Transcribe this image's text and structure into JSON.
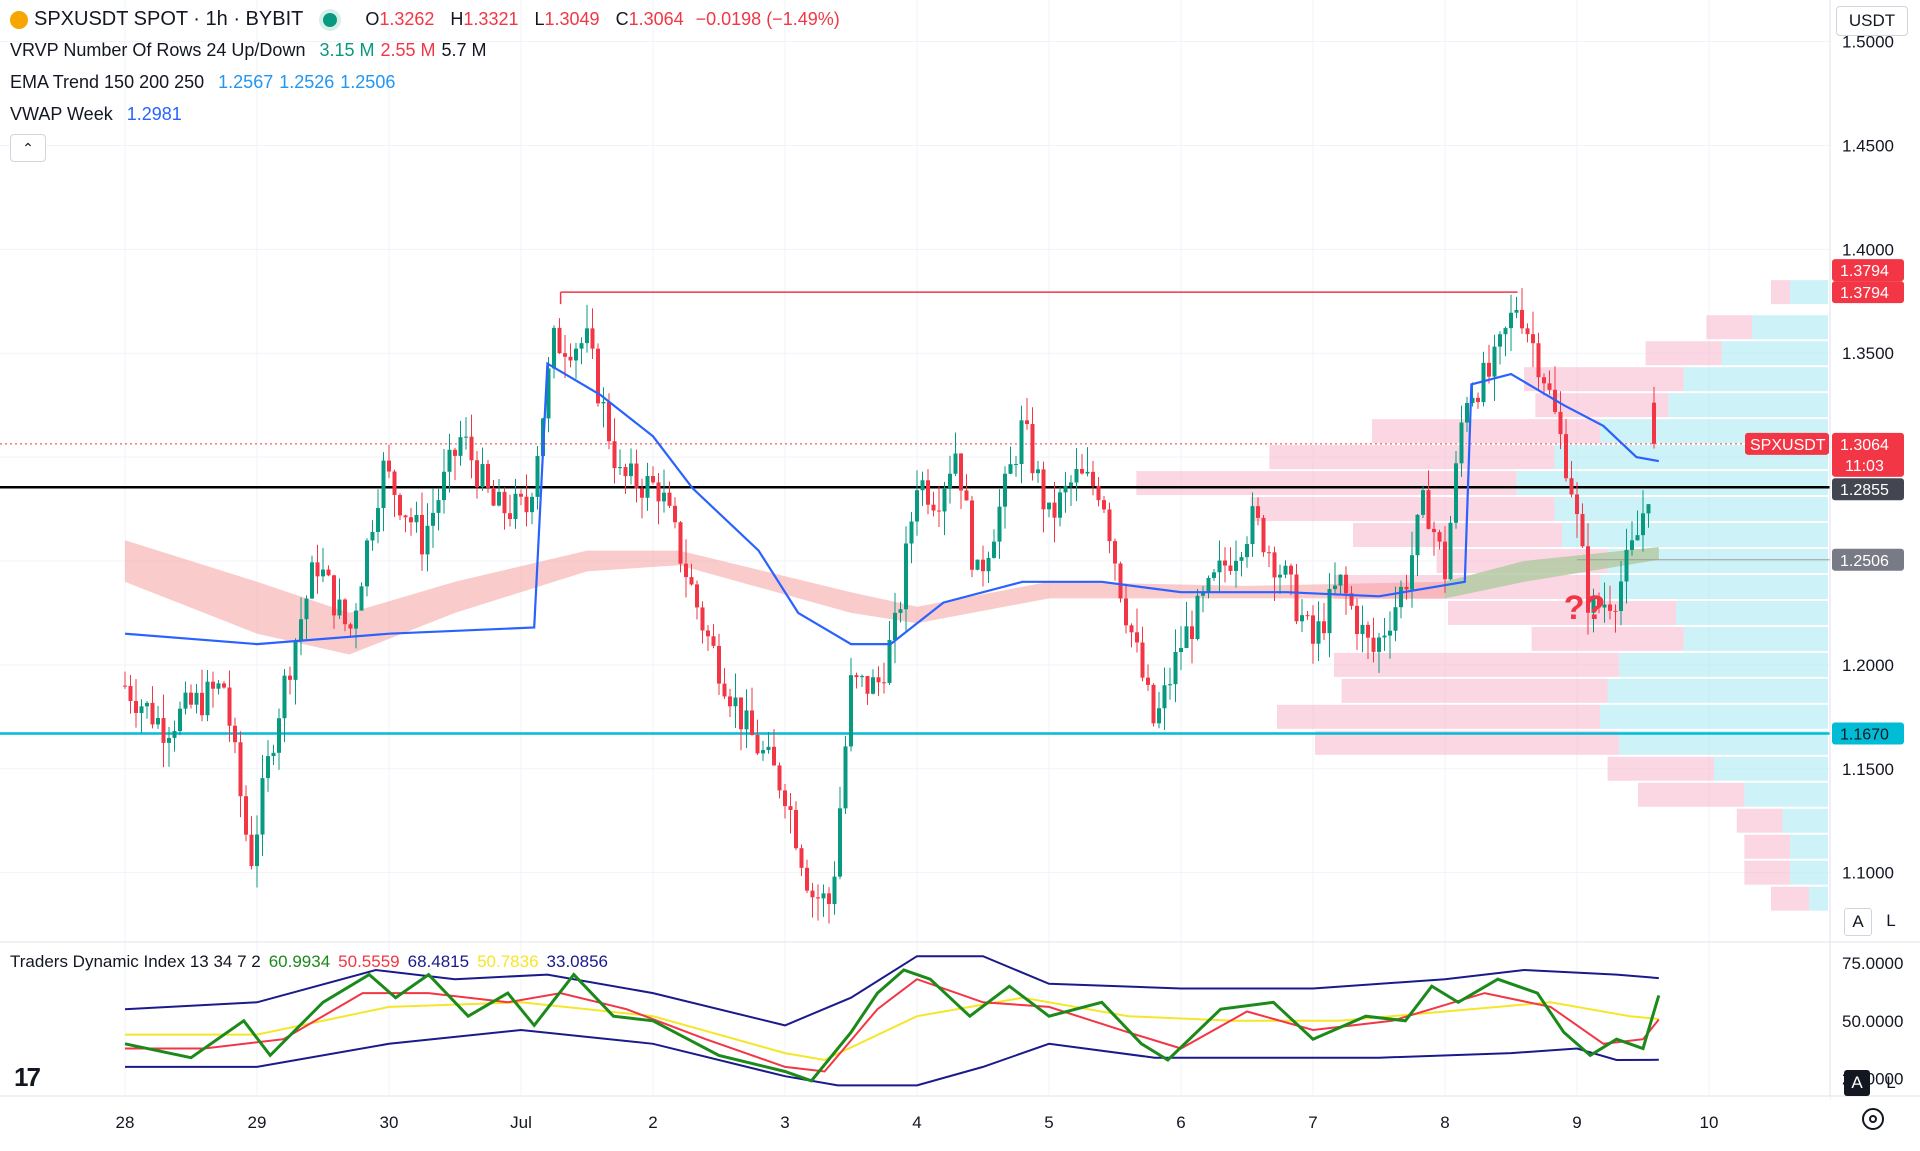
{
  "header": {
    "symbol": "SPXUSDT SPOT · 1h · BYBIT",
    "o_label": "O",
    "o_value": "1.3262",
    "h_label": "H",
    "h_value": "1.3321",
    "l_label": "L",
    "l_value": "1.3049",
    "c_label": "C",
    "c_value": "1.3064",
    "change": "−0.0198 (−1.49%)"
  },
  "indicators": {
    "vrvp_label": "VRVP Number Of Rows 24 Up/Down",
    "vrvp_up": "3.15 M",
    "vrvp_down": "2.55 M",
    "vrvp_total": "5.7 M",
    "ema_label": "EMA Trend 150 200 250",
    "ema_150": "1.2567",
    "ema_200": "1.2526",
    "ema_250": "1.2506",
    "vwap_label": "VWAP Week",
    "vwap_value": "1.2981"
  },
  "tdi": {
    "label": "Traders Dynamic Index 13 34 7 2",
    "v1": "60.9934",
    "v2": "50.5559",
    "v3": "68.4815",
    "v4": "50.7836",
    "v5": "33.0856",
    "axis": [
      "75.0000",
      "50.0000",
      "25.0000"
    ]
  },
  "currency": "USDT",
  "buttons": {
    "collapse": "⌃",
    "auto": "A",
    "log": "L"
  },
  "annotation": "??",
  "price_tags": {
    "high1": "1.3794",
    "high2": "1.3794",
    "symbol": "SPXUSDT",
    "last": "1.3064",
    "countdown": "11:03",
    "resistance": "1.2855",
    "ema": "1.2506",
    "support": "1.1670"
  },
  "colors": {
    "up": "#089981",
    "down": "#f23645",
    "vwap": "#2962ff",
    "resistance": "#000000",
    "support": "#00bcd4",
    "range_line": "#f23645",
    "tdi_green": "#1b8a1b",
    "tdi_red": "#f23645",
    "tdi_yellow": "#f5e62a",
    "tdi_bands": "#1a1a8c"
  },
  "chart_data": {
    "type": "candlestick",
    "timeframe": "1h",
    "y_axis": {
      "ylim": [
        1.07,
        1.52
      ],
      "ticks": [
        "1.5000",
        "1.4500",
        "1.4000",
        "1.3500",
        "1.3000",
        "1.2500",
        "1.2000",
        "1.1500",
        "1.1000"
      ]
    },
    "x_axis": {
      "ticks": [
        "28",
        "29",
        "30",
        "Jul",
        "2",
        "3",
        "4",
        "5",
        "6",
        "7",
        "8",
        "9",
        "10"
      ]
    },
    "ohlc_last": {
      "open": 1.3262,
      "high": 1.3321,
      "low": 1.3049,
      "close": 1.3064
    },
    "close_path": [
      {
        "x": 0.0,
        "y": 1.19
      },
      {
        "x": 0.3,
        "y": 1.17
      },
      {
        "x": 0.5,
        "y": 1.18
      },
      {
        "x": 0.75,
        "y": 1.19
      },
      {
        "x": 0.95,
        "y": 1.105
      },
      {
        "x": 1.15,
        "y": 1.175
      },
      {
        "x": 1.3,
        "y": 1.215
      },
      {
        "x": 1.45,
        "y": 1.25
      },
      {
        "x": 1.7,
        "y": 1.215
      },
      {
        "x": 1.95,
        "y": 1.295
      },
      {
        "x": 2.25,
        "y": 1.26
      },
      {
        "x": 2.55,
        "y": 1.31
      },
      {
        "x": 2.8,
        "y": 1.275
      },
      {
        "x": 3.05,
        "y": 1.275
      },
      {
        "x": 3.25,
        "y": 1.355
      },
      {
        "x": 3.5,
        "y": 1.355
      },
      {
        "x": 3.75,
        "y": 1.29
      },
      {
        "x": 4.05,
        "y": 1.285
      },
      {
        "x": 4.4,
        "y": 1.215
      },
      {
        "x": 4.7,
        "y": 1.17
      },
      {
        "x": 5.0,
        "y": 1.14
      },
      {
        "x": 5.2,
        "y": 1.09
      },
      {
        "x": 5.35,
        "y": 1.085
      },
      {
        "x": 5.5,
        "y": 1.19
      },
      {
        "x": 5.7,
        "y": 1.19
      },
      {
        "x": 5.85,
        "y": 1.22
      },
      {
        "x": 6.0,
        "y": 1.29
      },
      {
        "x": 6.15,
        "y": 1.28
      },
      {
        "x": 6.3,
        "y": 1.305
      },
      {
        "x": 6.45,
        "y": 1.24
      },
      {
        "x": 6.65,
        "y": 1.28
      },
      {
        "x": 6.8,
        "y": 1.315
      },
      {
        "x": 7.0,
        "y": 1.27
      },
      {
        "x": 7.2,
        "y": 1.29
      },
      {
        "x": 7.4,
        "y": 1.285
      },
      {
        "x": 7.55,
        "y": 1.235
      },
      {
        "x": 7.8,
        "y": 1.17
      },
      {
        "x": 8.0,
        "y": 1.21
      },
      {
        "x": 8.3,
        "y": 1.245
      },
      {
        "x": 8.55,
        "y": 1.27
      },
      {
        "x": 8.8,
        "y": 1.24
      },
      {
        "x": 9.0,
        "y": 1.21
      },
      {
        "x": 9.2,
        "y": 1.24
      },
      {
        "x": 9.45,
        "y": 1.205
      },
      {
        "x": 9.7,
        "y": 1.24
      },
      {
        "x": 9.85,
        "y": 1.28
      },
      {
        "x": 10.0,
        "y": 1.245
      },
      {
        "x": 10.15,
        "y": 1.33
      },
      {
        "x": 10.35,
        "y": 1.34
      },
      {
        "x": 10.55,
        "y": 1.375
      },
      {
        "x": 10.75,
        "y": 1.34
      },
      {
        "x": 10.95,
        "y": 1.29
      },
      {
        "x": 11.1,
        "y": 1.225
      },
      {
        "x": 11.3,
        "y": 1.235
      },
      {
        "x": 11.45,
        "y": 1.26
      },
      {
        "x": 11.62,
        "y": 1.3064
      }
    ],
    "vwap": [
      {
        "x": 0.0,
        "y": 1.215
      },
      {
        "x": 1.0,
        "y": 1.21
      },
      {
        "x": 2.0,
        "y": 1.215
      },
      {
        "x": 3.1,
        "y": 1.218
      },
      {
        "x": 3.2,
        "y": 1.345
      },
      {
        "x": 3.6,
        "y": 1.33
      },
      {
        "x": 4.0,
        "y": 1.31
      },
      {
        "x": 4.3,
        "y": 1.285
      },
      {
        "x": 4.8,
        "y": 1.255
      },
      {
        "x": 5.1,
        "y": 1.225
      },
      {
        "x": 5.5,
        "y": 1.21
      },
      {
        "x": 5.8,
        "y": 1.21
      },
      {
        "x": 6.2,
        "y": 1.23
      },
      {
        "x": 6.8,
        "y": 1.24
      },
      {
        "x": 7.4,
        "y": 1.24
      },
      {
        "x": 8.0,
        "y": 1.235
      },
      {
        "x": 8.8,
        "y": 1.235
      },
      {
        "x": 9.5,
        "y": 1.233
      },
      {
        "x": 10.15,
        "y": 1.24
      },
      {
        "x": 10.2,
        "y": 1.335
      },
      {
        "x": 10.5,
        "y": 1.34
      },
      {
        "x": 10.9,
        "y": 1.325
      },
      {
        "x": 11.2,
        "y": 1.315
      },
      {
        "x": 11.45,
        "y": 1.3
      },
      {
        "x": 11.62,
        "y": 1.2981
      }
    ],
    "ema_band": {
      "upper": [
        {
          "x": 0.0,
          "y": 1.26
        },
        {
          "x": 1.0,
          "y": 1.24
        },
        {
          "x": 1.7,
          "y": 1.225
        },
        {
          "x": 2.5,
          "y": 1.24
        },
        {
          "x": 3.5,
          "y": 1.255
        },
        {
          "x": 4.2,
          "y": 1.255
        },
        {
          "x": 5.5,
          "y": 1.235
        },
        {
          "x": 6.0,
          "y": 1.228
        },
        {
          "x": 7.0,
          "y": 1.24
        },
        {
          "x": 8.5,
          "y": 1.238
        },
        {
          "x": 10.0,
          "y": 1.24
        },
        {
          "x": 10.6,
          "y": 1.25
        },
        {
          "x": 11.62,
          "y": 1.2567
        }
      ],
      "lower": [
        {
          "x": 0.0,
          "y": 1.24
        },
        {
          "x": 1.0,
          "y": 1.215
        },
        {
          "x": 1.7,
          "y": 1.205
        },
        {
          "x": 2.5,
          "y": 1.225
        },
        {
          "x": 3.5,
          "y": 1.245
        },
        {
          "x": 4.2,
          "y": 1.248
        },
        {
          "x": 5.5,
          "y": 1.225
        },
        {
          "x": 6.0,
          "y": 1.22
        },
        {
          "x": 7.0,
          "y": 1.232
        },
        {
          "x": 8.5,
          "y": 1.232
        },
        {
          "x": 10.0,
          "y": 1.232
        },
        {
          "x": 10.6,
          "y": 1.24
        },
        {
          "x": 11.62,
          "y": 1.2506
        }
      ]
    },
    "levels": {
      "resistance": 1.2855,
      "support": 1.167,
      "ema_last": 1.2506,
      "last_price": 1.3064,
      "range_top": 1.3794
    },
    "range_line": {
      "x_start": 3.3,
      "x_end": 10.55,
      "y": 1.3794
    },
    "volume_profile": [
      {
        "price": 1.3794,
        "up": 0.1,
        "down": 0.05
      },
      {
        "price": 1.3625,
        "up": 0.2,
        "down": 0.12
      },
      {
        "price": 1.35,
        "up": 0.28,
        "down": 0.2
      },
      {
        "price": 1.3375,
        "up": 0.38,
        "down": 0.42
      },
      {
        "price": 1.325,
        "up": 0.42,
        "down": 0.35
      },
      {
        "price": 1.3125,
        "up": 0.6,
        "down": 0.6
      },
      {
        "price": 1.3,
        "up": 0.72,
        "down": 0.75
      },
      {
        "price": 1.2875,
        "up": 0.82,
        "down": 1.0
      },
      {
        "price": 1.275,
        "up": 0.72,
        "down": 0.8
      },
      {
        "price": 1.2625,
        "up": 0.7,
        "down": 0.55
      },
      {
        "price": 1.25,
        "up": 0.58,
        "down": 0.45
      },
      {
        "price": 1.2375,
        "up": 0.6,
        "down": 0.7
      },
      {
        "price": 1.225,
        "up": 0.4,
        "down": 0.6
      },
      {
        "price": 1.2125,
        "up": 0.38,
        "down": 0.4
      },
      {
        "price": 1.2,
        "up": 0.55,
        "down": 0.75
      },
      {
        "price": 1.1875,
        "up": 0.58,
        "down": 0.7
      },
      {
        "price": 1.175,
        "up": 0.6,
        "down": 0.85
      },
      {
        "price": 1.1625,
        "up": 0.55,
        "down": 0.8
      },
      {
        "price": 1.15,
        "up": 0.3,
        "down": 0.28
      },
      {
        "price": 1.1375,
        "up": 0.22,
        "down": 0.28
      },
      {
        "price": 1.125,
        "up": 0.12,
        "down": 0.12
      },
      {
        "price": 1.1125,
        "up": 0.1,
        "down": 0.12
      },
      {
        "price": 1.1,
        "up": 0.1,
        "down": 0.12
      },
      {
        "price": 1.0875,
        "up": 0.05,
        "down": 0.1
      }
    ],
    "tdi_panel": {
      "ylim": [
        20,
        85
      ],
      "rsi_price": [
        {
          "x": 0.0,
          "y": 40
        },
        {
          "x": 0.5,
          "y": 34
        },
        {
          "x": 0.9,
          "y": 50
        },
        {
          "x": 1.1,
          "y": 35
        },
        {
          "x": 1.5,
          "y": 58
        },
        {
          "x": 1.85,
          "y": 70
        },
        {
          "x": 2.05,
          "y": 60
        },
        {
          "x": 2.3,
          "y": 70
        },
        {
          "x": 2.6,
          "y": 52
        },
        {
          "x": 2.9,
          "y": 62
        },
        {
          "x": 3.1,
          "y": 48
        },
        {
          "x": 3.4,
          "y": 70
        },
        {
          "x": 3.7,
          "y": 52
        },
        {
          "x": 4.0,
          "y": 50
        },
        {
          "x": 4.5,
          "y": 35
        },
        {
          "x": 5.0,
          "y": 28
        },
        {
          "x": 5.2,
          "y": 24
        },
        {
          "x": 5.5,
          "y": 45
        },
        {
          "x": 5.7,
          "y": 62
        },
        {
          "x": 5.9,
          "y": 72
        },
        {
          "x": 6.1,
          "y": 68
        },
        {
          "x": 6.4,
          "y": 52
        },
        {
          "x": 6.7,
          "y": 65
        },
        {
          "x": 7.0,
          "y": 52
        },
        {
          "x": 7.4,
          "y": 58
        },
        {
          "x": 7.7,
          "y": 40
        },
        {
          "x": 7.9,
          "y": 33
        },
        {
          "x": 8.3,
          "y": 55
        },
        {
          "x": 8.7,
          "y": 58
        },
        {
          "x": 9.0,
          "y": 42
        },
        {
          "x": 9.4,
          "y": 52
        },
        {
          "x": 9.7,
          "y": 50
        },
        {
          "x": 9.9,
          "y": 65
        },
        {
          "x": 10.1,
          "y": 58
        },
        {
          "x": 10.4,
          "y": 68
        },
        {
          "x": 10.7,
          "y": 62
        },
        {
          "x": 10.9,
          "y": 45
        },
        {
          "x": 11.1,
          "y": 35
        },
        {
          "x": 11.3,
          "y": 42
        },
        {
          "x": 11.5,
          "y": 38
        },
        {
          "x": 11.62,
          "y": 60.99
        }
      ],
      "signal": [
        {
          "x": 0.0,
          "y": 38
        },
        {
          "x": 0.6,
          "y": 38
        },
        {
          "x": 1.2,
          "y": 42
        },
        {
          "x": 1.8,
          "y": 62
        },
        {
          "x": 2.3,
          "y": 62
        },
        {
          "x": 2.9,
          "y": 58
        },
        {
          "x": 3.3,
          "y": 62
        },
        {
          "x": 3.8,
          "y": 55
        },
        {
          "x": 4.4,
          "y": 42
        },
        {
          "x": 5.0,
          "y": 30
        },
        {
          "x": 5.3,
          "y": 28
        },
        {
          "x": 5.7,
          "y": 55
        },
        {
          "x": 6.0,
          "y": 68
        },
        {
          "x": 6.5,
          "y": 58
        },
        {
          "x": 7.0,
          "y": 56
        },
        {
          "x": 7.6,
          "y": 45
        },
        {
          "x": 8.0,
          "y": 38
        },
        {
          "x": 8.5,
          "y": 54
        },
        {
          "x": 9.0,
          "y": 46
        },
        {
          "x": 9.6,
          "y": 50
        },
        {
          "x": 10.3,
          "y": 62
        },
        {
          "x": 10.8,
          "y": 56
        },
        {
          "x": 11.2,
          "y": 40
        },
        {
          "x": 11.5,
          "y": 42
        },
        {
          "x": 11.62,
          "y": 50.56
        }
      ],
      "middle": [
        {
          "x": 0.0,
          "y": 44
        },
        {
          "x": 1.0,
          "y": 44
        },
        {
          "x": 2.0,
          "y": 56
        },
        {
          "x": 3.0,
          "y": 58
        },
        {
          "x": 4.0,
          "y": 52
        },
        {
          "x": 5.0,
          "y": 36
        },
        {
          "x": 5.3,
          "y": 33
        },
        {
          "x": 6.0,
          "y": 52
        },
        {
          "x": 6.8,
          "y": 60
        },
        {
          "x": 7.6,
          "y": 52
        },
        {
          "x": 8.4,
          "y": 50
        },
        {
          "x": 9.2,
          "y": 50
        },
        {
          "x": 10.0,
          "y": 54
        },
        {
          "x": 10.8,
          "y": 58
        },
        {
          "x": 11.4,
          "y": 52
        },
        {
          "x": 11.62,
          "y": 50.78
        }
      ],
      "upper_band": [
        {
          "x": 0.0,
          "y": 55
        },
        {
          "x": 1.0,
          "y": 58
        },
        {
          "x": 1.9,
          "y": 72
        },
        {
          "x": 2.5,
          "y": 68
        },
        {
          "x": 3.2,
          "y": 70
        },
        {
          "x": 4.0,
          "y": 62
        },
        {
          "x": 5.0,
          "y": 48
        },
        {
          "x": 5.5,
          "y": 60
        },
        {
          "x": 6.0,
          "y": 78
        },
        {
          "x": 6.5,
          "y": 78
        },
        {
          "x": 7.0,
          "y": 66
        },
        {
          "x": 8.0,
          "y": 64
        },
        {
          "x": 9.0,
          "y": 64
        },
        {
          "x": 10.0,
          "y": 68
        },
        {
          "x": 10.6,
          "y": 72
        },
        {
          "x": 11.3,
          "y": 70
        },
        {
          "x": 11.62,
          "y": 68.48
        }
      ],
      "lower_band": [
        {
          "x": 0.0,
          "y": 30
        },
        {
          "x": 1.0,
          "y": 30
        },
        {
          "x": 2.0,
          "y": 40
        },
        {
          "x": 3.0,
          "y": 46
        },
        {
          "x": 4.0,
          "y": 40
        },
        {
          "x": 5.0,
          "y": 26
        },
        {
          "x": 5.4,
          "y": 22
        },
        {
          "x": 6.0,
          "y": 22
        },
        {
          "x": 6.5,
          "y": 30
        },
        {
          "x": 7.0,
          "y": 40
        },
        {
          "x": 7.8,
          "y": 34
        },
        {
          "x": 8.5,
          "y": 34
        },
        {
          "x": 9.5,
          "y": 34
        },
        {
          "x": 10.5,
          "y": 36
        },
        {
          "x": 11.0,
          "y": 38
        },
        {
          "x": 11.3,
          "y": 33
        },
        {
          "x": 11.62,
          "y": 33.09
        }
      ]
    }
  }
}
